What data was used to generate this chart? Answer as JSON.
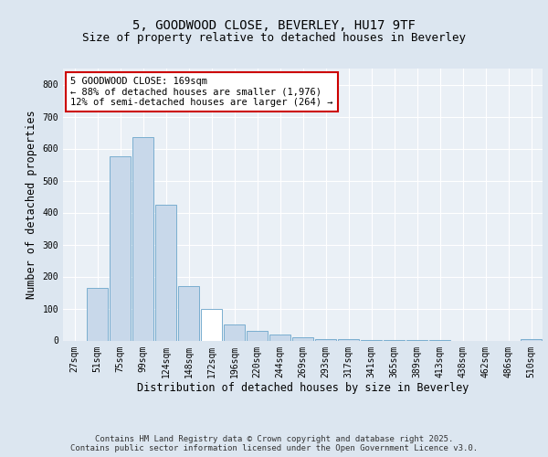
{
  "title": "5, GOODWOOD CLOSE, BEVERLEY, HU17 9TF",
  "subtitle": "Size of property relative to detached houses in Beverley",
  "xlabel": "Distribution of detached houses by size in Beverley",
  "ylabel": "Number of detached properties",
  "categories": [
    "27sqm",
    "51sqm",
    "75sqm",
    "99sqm",
    "124sqm",
    "148sqm",
    "172sqm",
    "196sqm",
    "220sqm",
    "244sqm",
    "269sqm",
    "293sqm",
    "317sqm",
    "341sqm",
    "365sqm",
    "389sqm",
    "413sqm",
    "438sqm",
    "462sqm",
    "486sqm",
    "510sqm"
  ],
  "values": [
    0,
    165,
    575,
    635,
    425,
    170,
    100,
    50,
    30,
    18,
    10,
    5,
    3,
    2,
    1,
    1,
    1,
    0,
    0,
    0,
    3
  ],
  "bar_color": "#c8d8ea",
  "bar_edge_color": "#7aaed0",
  "highlight_index": 6,
  "highlight_color": "#ffffff",
  "highlight_edge_color": "#7aaed0",
  "annotation_text": "5 GOODWOOD CLOSE: 169sqm\n← 88% of detached houses are smaller (1,976)\n12% of semi-detached houses are larger (264) →",
  "annotation_box_facecolor": "#ffffff",
  "annotation_box_edgecolor": "#cc0000",
  "ylim": [
    0,
    850
  ],
  "yticks": [
    0,
    100,
    200,
    300,
    400,
    500,
    600,
    700,
    800
  ],
  "background_color": "#dce6f0",
  "plot_background_color": "#eaf0f6",
  "grid_color": "#ffffff",
  "footer_text": "Contains HM Land Registry data © Crown copyright and database right 2025.\nContains public sector information licensed under the Open Government Licence v3.0.",
  "title_fontsize": 10,
  "subtitle_fontsize": 9,
  "axis_label_fontsize": 8.5,
  "tick_fontsize": 7,
  "annotation_fontsize": 7.5,
  "footer_fontsize": 6.5
}
